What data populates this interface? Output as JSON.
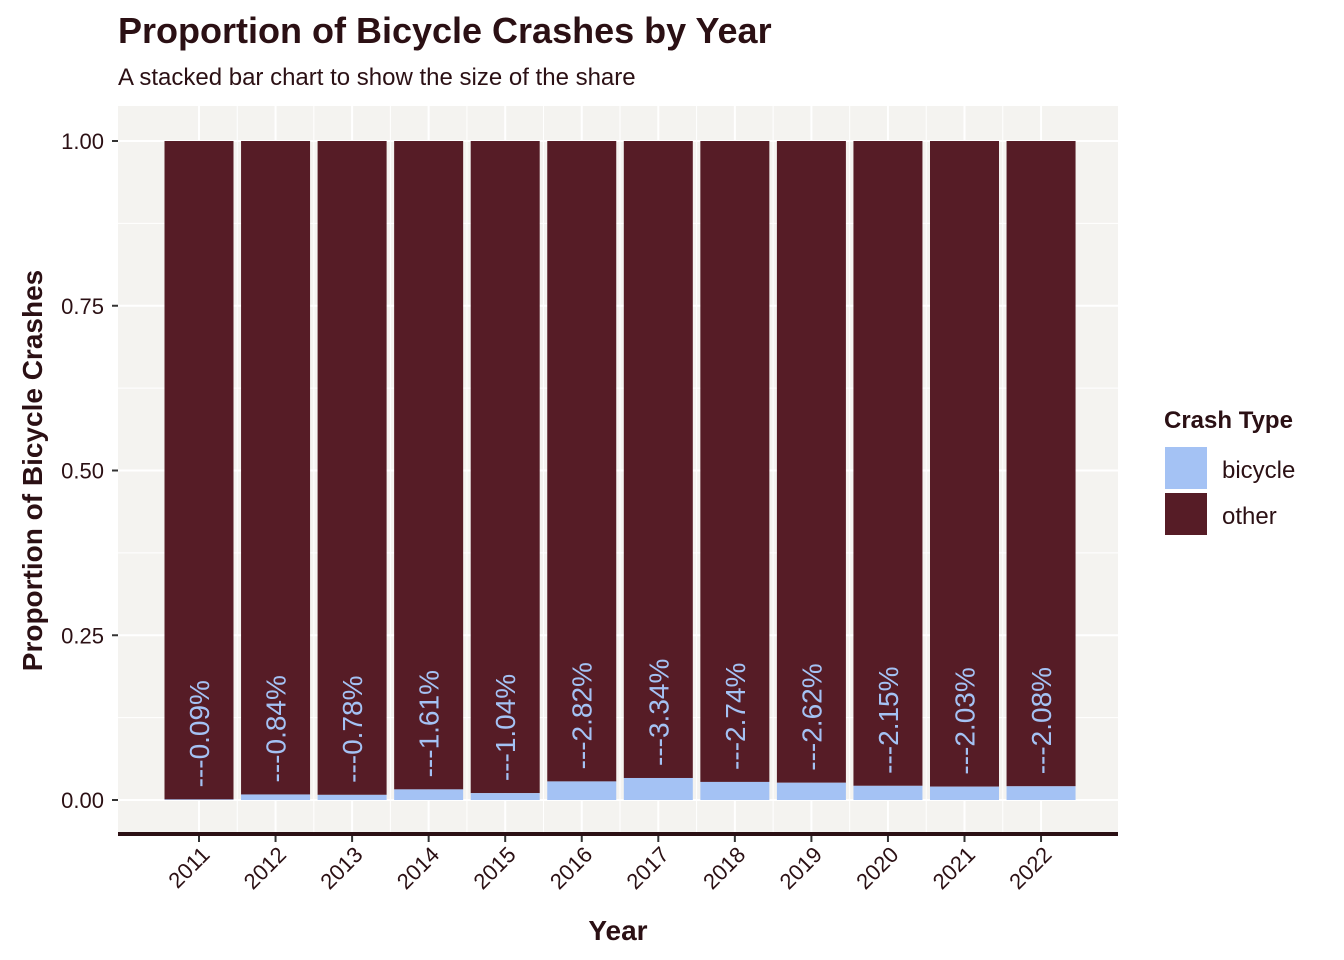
{
  "chart_data": {
    "type": "bar",
    "stacked": true,
    "title": "Proportion of Bicycle Crashes by Year",
    "subtitle": "A stacked bar chart to show the size of the share",
    "xlabel": "Year",
    "ylabel": "Proportion of Bicycle Crashes",
    "ylim": [
      0,
      1
    ],
    "yticks": [
      "0.00",
      "0.25",
      "0.50",
      "0.75",
      "1.00"
    ],
    "ytick_values": [
      0,
      0.25,
      0.5,
      0.75,
      1
    ],
    "grid": true,
    "legend_position": "right",
    "legend_title": "Crash Type",
    "categories": [
      "2011",
      "2012",
      "2013",
      "2014",
      "2015",
      "2016",
      "2017",
      "2018",
      "2019",
      "2020",
      "2021",
      "2022"
    ],
    "series": [
      {
        "name": "bicycle",
        "color": "#a4c2f4",
        "values": [
          0.0009,
          0.0084,
          0.0078,
          0.0161,
          0.0104,
          0.0282,
          0.0334,
          0.0274,
          0.0262,
          0.0215,
          0.0203,
          0.0208
        ]
      },
      {
        "name": "other",
        "color": "#561c26",
        "values": [
          0.9991,
          0.9916,
          0.9922,
          0.9839,
          0.9896,
          0.9718,
          0.9666,
          0.9726,
          0.9738,
          0.9785,
          0.9797,
          0.9792
        ]
      }
    ],
    "data_labels": [
      "---0.09%",
      "---0.84%",
      "---0.78%",
      "---1.61%",
      "---1.04%",
      "---2.82%",
      "---3.34%",
      "---2.74%",
      "---2.62%",
      "---2.15%",
      "---2.03%",
      "---2.08%"
    ],
    "panel_color": "#f4f3f0",
    "axis_color": "#2b1014"
  }
}
